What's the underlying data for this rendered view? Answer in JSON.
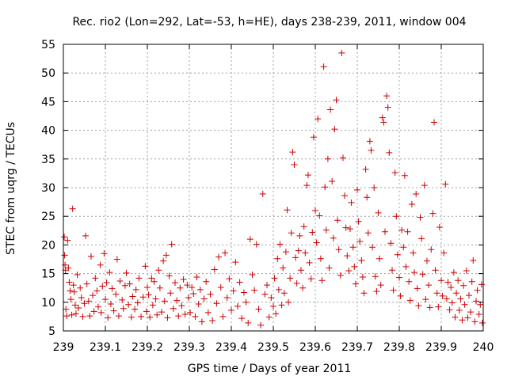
{
  "chart_data": {
    "type": "scatter",
    "title": "Rec. rio2 (Lon=292, Lat=-53, h=HE), days 238-239, 2011, window 004",
    "xlabel": "GPS time / Days of year 2011",
    "ylabel": "STEC from uqrg / TECUs",
    "xlim": [
      239,
      240
    ],
    "ylim": [
      5,
      55
    ],
    "xticks": [
      239,
      239.1,
      239.2,
      239.3,
      239.4,
      239.5,
      239.6,
      239.7,
      239.8,
      239.9,
      240
    ],
    "xtick_labels": [
      "239",
      "239.1",
      "239.2",
      "239.3",
      "239.4",
      "239.5",
      "239.6",
      "239.7",
      "239.8",
      "239.9",
      "240"
    ],
    "yticks": [
      5,
      10,
      15,
      20,
      25,
      30,
      35,
      40,
      45,
      50,
      55
    ],
    "ytick_labels": [
      "5",
      "10",
      "15",
      "20",
      "25",
      "30",
      "35",
      "40",
      "45",
      "50",
      "55"
    ],
    "grid": true,
    "marker": "+",
    "color": "#cc0000",
    "series": [
      {
        "name": "STEC",
        "points": [
          [
            239.002,
            21.4
          ],
          [
            239.003,
            18.2
          ],
          [
            239.004,
            16.5
          ],
          [
            239.005,
            15.6
          ],
          [
            239.006,
            8.8
          ],
          [
            239.008,
            7.6
          ],
          [
            239.01,
            20.8
          ],
          [
            239.012,
            16.0
          ],
          [
            239.014,
            13.5
          ],
          [
            239.016,
            12.0
          ],
          [
            239.018,
            10.5
          ],
          [
            239.02,
            7.8
          ],
          [
            239.022,
            26.3
          ],
          [
            239.024,
            13.0
          ],
          [
            239.026,
            11.8
          ],
          [
            239.028,
            9.5
          ],
          [
            239.03,
            8.0
          ],
          [
            239.033,
            14.8
          ],
          [
            239.036,
            9.0
          ],
          [
            239.04,
            12.5
          ],
          [
            239.043,
            10.8
          ],
          [
            239.046,
            7.5
          ],
          [
            239.05,
            9.8
          ],
          [
            239.053,
            21.6
          ],
          [
            239.056,
            13.2
          ],
          [
            239.06,
            10.2
          ],
          [
            239.063,
            7.6
          ],
          [
            239.066,
            18.0
          ],
          [
            239.07,
            11.2
          ],
          [
            239.073,
            8.4
          ],
          [
            239.076,
            14.2
          ],
          [
            239.08,
            12.0
          ],
          [
            239.083,
            9.2
          ],
          [
            239.088,
            16.5
          ],
          [
            239.09,
            8.2
          ],
          [
            239.093,
            12.8
          ],
          [
            239.097,
            18.5
          ],
          [
            239.1,
            10.5
          ],
          [
            239.103,
            13.4
          ],
          [
            239.106,
            7.3
          ],
          [
            239.11,
            15.2
          ],
          [
            239.113,
            9.7
          ],
          [
            239.116,
            12.4
          ],
          [
            239.12,
            8.5
          ],
          [
            239.125,
            11.4
          ],
          [
            239.128,
            17.5
          ],
          [
            239.132,
            7.6
          ],
          [
            239.135,
            13.7
          ],
          [
            239.14,
            10.4
          ],
          [
            239.143,
            8.9
          ],
          [
            239.147,
            12.9
          ],
          [
            239.15,
            15.1
          ],
          [
            239.155,
            9.6
          ],
          [
            239.158,
            13.2
          ],
          [
            239.162,
            7.4
          ],
          [
            239.165,
            11.0
          ],
          [
            239.17,
            8.8
          ],
          [
            239.173,
            12.2
          ],
          [
            239.177,
            9.9
          ],
          [
            239.18,
            14.2
          ],
          [
            239.185,
            7.5
          ],
          [
            239.19,
            10.9
          ],
          [
            239.195,
            16.3
          ],
          [
            239.198,
            8.4
          ],
          [
            239.2,
            12.6
          ],
          [
            239.203,
            11.3
          ],
          [
            239.206,
            7.4
          ],
          [
            239.21,
            14.2
          ],
          [
            239.213,
            9.5
          ],
          [
            239.216,
            13.6
          ],
          [
            239.22,
            10.6
          ],
          [
            239.223,
            7.8
          ],
          [
            239.227,
            15.6
          ],
          [
            239.23,
            12.5
          ],
          [
            239.234,
            8.3
          ],
          [
            239.238,
            17.2
          ],
          [
            239.241,
            10.2
          ],
          [
            239.245,
            18.2
          ],
          [
            239.248,
            7.3
          ],
          [
            239.252,
            14.6
          ],
          [
            239.255,
            11.6
          ],
          [
            239.258,
            20.1
          ],
          [
            239.262,
            8.9
          ],
          [
            239.266,
            13.4
          ],
          [
            239.27,
            10.3
          ],
          [
            239.274,
            7.6
          ],
          [
            239.278,
            12.5
          ],
          [
            239.282,
            9.4
          ],
          [
            239.286,
            14.0
          ],
          [
            239.29,
            7.9
          ],
          [
            239.295,
            13.0
          ],
          [
            239.298,
            10.8
          ],
          [
            239.302,
            8.2
          ],
          [
            239.306,
            12.6
          ],
          [
            239.31,
            11.5
          ],
          [
            239.314,
            7.5
          ],
          [
            239.318,
            14.4
          ],
          [
            239.322,
            9.7
          ],
          [
            239.326,
            12.2
          ],
          [
            239.33,
            6.6
          ],
          [
            239.335,
            10.6
          ],
          [
            239.34,
            13.6
          ],
          [
            239.345,
            8.2
          ],
          [
            239.35,
            11.4
          ],
          [
            239.355,
            6.8
          ],
          [
            239.36,
            15.7
          ],
          [
            239.365,
            9.8
          ],
          [
            239.37,
            17.9
          ],
          [
            239.375,
            12.6
          ],
          [
            239.38,
            7.5
          ],
          [
            239.385,
            18.6
          ],
          [
            239.39,
            10.8
          ],
          [
            239.395,
            14.1
          ],
          [
            239.4,
            8.6
          ],
          [
            239.405,
            12.0
          ],
          [
            239.41,
            17.0
          ],
          [
            239.415,
            9.3
          ],
          [
            239.42,
            13.5
          ],
          [
            239.425,
            7.2
          ],
          [
            239.43,
            11.7
          ],
          [
            239.435,
            10.0
          ],
          [
            239.44,
            6.4
          ],
          [
            239.445,
            21.0
          ],
          [
            239.45,
            14.8
          ],
          [
            239.455,
            12.1
          ],
          [
            239.46,
            20.1
          ],
          [
            239.465,
            8.8
          ],
          [
            239.47,
            6.0
          ],
          [
            239.475,
            28.9
          ],
          [
            239.48,
            11.4
          ],
          [
            239.485,
            13.0
          ],
          [
            239.49,
            7.4
          ],
          [
            239.495,
            10.8
          ],
          [
            239.5,
            9.3
          ],
          [
            239.503,
            14.2
          ],
          [
            239.506,
            8.0
          ],
          [
            239.51,
            17.6
          ],
          [
            239.513,
            12.2
          ],
          [
            239.516,
            20.1
          ],
          [
            239.52,
            9.5
          ],
          [
            239.523,
            16.0
          ],
          [
            239.526,
            11.6
          ],
          [
            239.53,
            18.8
          ],
          [
            239.533,
            26.1
          ],
          [
            239.536,
            10.0
          ],
          [
            239.54,
            14.2
          ],
          [
            239.543,
            22.1
          ],
          [
            239.546,
            36.2
          ],
          [
            239.55,
            34.0
          ],
          [
            239.553,
            17.8
          ],
          [
            239.556,
            13.3
          ],
          [
            239.56,
            19.0
          ],
          [
            239.563,
            21.6
          ],
          [
            239.566,
            15.6
          ],
          [
            239.57,
            12.5
          ],
          [
            239.573,
            23.2
          ],
          [
            239.576,
            18.6
          ],
          [
            239.58,
            30.4
          ],
          [
            239.583,
            32.2
          ],
          [
            239.586,
            16.9
          ],
          [
            239.59,
            14.1
          ],
          [
            239.593,
            22.2
          ],
          [
            239.596,
            38.8
          ],
          [
            239.6,
            26.0
          ],
          [
            239.603,
            20.4
          ],
          [
            239.606,
            42.0
          ],
          [
            239.61,
            25.1
          ],
          [
            239.613,
            17.6
          ],
          [
            239.616,
            13.8
          ],
          [
            239.62,
            51.1
          ],
          [
            239.623,
            30.1
          ],
          [
            239.626,
            22.6
          ],
          [
            239.63,
            35.0
          ],
          [
            239.633,
            16.0
          ],
          [
            239.636,
            43.6
          ],
          [
            239.64,
            31.1
          ],
          [
            239.643,
            21.2
          ],
          [
            239.646,
            40.2
          ],
          [
            239.65,
            45.3
          ],
          [
            239.653,
            24.3
          ],
          [
            239.656,
            19.2
          ],
          [
            239.66,
            14.7
          ],
          [
            239.663,
            53.5
          ],
          [
            239.666,
            35.2
          ],
          [
            239.67,
            28.6
          ],
          [
            239.673,
            23.0
          ],
          [
            239.676,
            18.1
          ],
          [
            239.68,
            15.5
          ],
          [
            239.683,
            22.8
          ],
          [
            239.686,
            27.4
          ],
          [
            239.69,
            19.6
          ],
          [
            239.693,
            16.2
          ],
          [
            239.696,
            13.2
          ],
          [
            239.7,
            29.6
          ],
          [
            239.703,
            24.1
          ],
          [
            239.706,
            20.6
          ],
          [
            239.71,
            17.3
          ],
          [
            239.713,
            14.4
          ],
          [
            239.716,
            11.6
          ],
          [
            239.72,
            33.2
          ],
          [
            239.723,
            28.3
          ],
          [
            239.726,
            22.1
          ],
          [
            239.73,
            38.1
          ],
          [
            239.733,
            36.5
          ],
          [
            239.736,
            19.6
          ],
          [
            239.74,
            30.0
          ],
          [
            239.743,
            14.5
          ],
          [
            239.746,
            11.9
          ],
          [
            239.75,
            25.6
          ],
          [
            239.753,
            17.6
          ],
          [
            239.756,
            13.0
          ],
          [
            239.76,
            42.2
          ],
          [
            239.763,
            41.4
          ],
          [
            239.766,
            22.3
          ],
          [
            239.77,
            46.0
          ],
          [
            239.773,
            44.0
          ],
          [
            239.776,
            36.1
          ],
          [
            239.78,
            20.3
          ],
          [
            239.783,
            15.6
          ],
          [
            239.786,
            12.1
          ],
          [
            239.79,
            32.6
          ],
          [
            239.793,
            25.0
          ],
          [
            239.796,
            18.3
          ],
          [
            239.8,
            14.3
          ],
          [
            239.803,
            11.1
          ],
          [
            239.806,
            22.6
          ],
          [
            239.81,
            19.6
          ],
          [
            239.813,
            32.1
          ],
          [
            239.816,
            16.2
          ],
          [
            239.82,
            22.3
          ],
          [
            239.823,
            13.6
          ],
          [
            239.826,
            10.3
          ],
          [
            239.83,
            27.1
          ],
          [
            239.833,
            18.6
          ],
          [
            239.836,
            15.2
          ],
          [
            239.84,
            28.9
          ],
          [
            239.843,
            12.4
          ],
          [
            239.846,
            9.4
          ],
          [
            239.85,
            24.8
          ],
          [
            239.853,
            21.1
          ],
          [
            239.856,
            14.9
          ],
          [
            239.86,
            30.4
          ],
          [
            239.863,
            10.5
          ],
          [
            239.866,
            17.2
          ],
          [
            239.87,
            13.0
          ],
          [
            239.873,
            9.1
          ],
          [
            239.876,
            19.2
          ],
          [
            239.88,
            25.5
          ],
          [
            239.883,
            41.4
          ],
          [
            239.886,
            15.6
          ],
          [
            239.89,
            11.6
          ],
          [
            239.893,
            9.2
          ],
          [
            239.896,
            23.1
          ],
          [
            239.9,
            13.8
          ],
          [
            239.903,
            11.1
          ],
          [
            239.906,
            18.6
          ],
          [
            239.91,
            30.6
          ],
          [
            239.913,
            10.6
          ],
          [
            239.916,
            13.5
          ],
          [
            239.92,
            8.7
          ],
          [
            239.923,
            12.6
          ],
          [
            239.926,
            9.9
          ],
          [
            239.93,
            15.2
          ],
          [
            239.933,
            7.4
          ],
          [
            239.936,
            11.6
          ],
          [
            239.94,
            13.8
          ],
          [
            239.943,
            8.6
          ],
          [
            239.946,
            10.6
          ],
          [
            239.95,
            6.9
          ],
          [
            239.953,
            12.9
          ],
          [
            239.956,
            9.6
          ],
          [
            239.96,
            15.5
          ],
          [
            239.963,
            7.3
          ],
          [
            239.966,
            11.2
          ],
          [
            239.97,
            8.3
          ],
          [
            239.973,
            13.6
          ],
          [
            239.976,
            17.3
          ],
          [
            239.98,
            6.6
          ],
          [
            239.983,
            10.2
          ],
          [
            239.986,
            12.1
          ],
          [
            239.99,
            7.9
          ],
          [
            239.993,
            9.6
          ],
          [
            239.996,
            13.1
          ],
          [
            239.998,
            6.4
          ]
        ]
      }
    ]
  }
}
